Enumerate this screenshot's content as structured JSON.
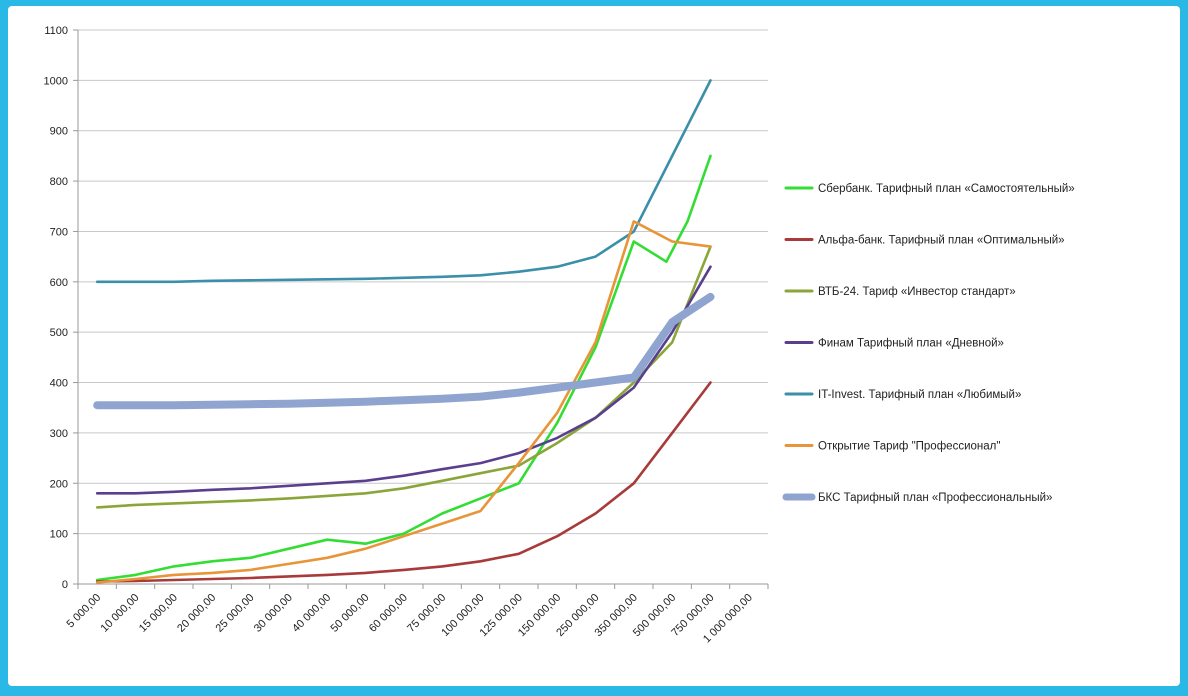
{
  "chart_data": {
    "type": "line",
    "categories": [
      "5 000,00",
      "10 000,00",
      "15 000,00",
      "20 000,00",
      "25 000,00",
      "30 000,00",
      "40 000,00",
      "50 000,00",
      "60 000,00",
      "75 000,00",
      "100 000,00",
      "125 000,00",
      "150 000,00",
      "250 000,00",
      "350 000,00",
      "500 000,00",
      "750 000,00",
      "1 000 000,00"
    ],
    "y_ticks": [
      "0",
      "100",
      "200",
      "300",
      "400",
      "500",
      "600",
      "700",
      "800",
      "900",
      "1000",
      "1100"
    ],
    "ylim": [
      0,
      1100
    ],
    "grid": true,
    "legend_position": "right",
    "series": [
      {
        "name": "Сбербанк. Тарифный план «Самостоятельный»",
        "color": "#33dd33",
        "x": [
          1,
          2,
          3,
          4,
          5,
          6,
          7,
          8,
          9,
          10,
          11,
          12,
          13,
          14,
          15,
          15.85,
          16.4,
          17
        ],
        "values": [
          8,
          18,
          35,
          45,
          52,
          70,
          88,
          80,
          100,
          140,
          170,
          200,
          320,
          470,
          680,
          640,
          720,
          850
        ]
      },
      {
        "name": "Альфа-банк. Тарифный план «Оптимальный»",
        "color": "#a83a3a",
        "x": [
          1,
          2,
          3,
          4,
          5,
          6,
          7,
          8,
          9,
          10,
          11,
          12,
          13,
          14,
          15,
          16,
          17
        ],
        "values": [
          5,
          6,
          8,
          10,
          12,
          15,
          18,
          22,
          28,
          35,
          45,
          60,
          95,
          140,
          200,
          300,
          400
        ]
      },
      {
        "name": "ВТБ-24. Тариф «Инвестор стандарт»",
        "color": "#8aa63a",
        "x": [
          1,
          2,
          3,
          4,
          5,
          6,
          7,
          8,
          9,
          10,
          11,
          12,
          13,
          14,
          15,
          16,
          17
        ],
        "values": [
          152,
          157,
          160,
          163,
          166,
          170,
          175,
          180,
          190,
          205,
          220,
          235,
          280,
          330,
          400,
          480,
          670
        ]
      },
      {
        "name": "Финам Тарифный план «Дневной»",
        "color": "#5b3f8f",
        "x": [
          1,
          2,
          3,
          4,
          5,
          6,
          7,
          8,
          9,
          10,
          11,
          12,
          13,
          14,
          15,
          16,
          17
        ],
        "values": [
          180,
          180,
          183,
          187,
          190,
          195,
          200,
          205,
          215,
          228,
          240,
          260,
          290,
          330,
          390,
          500,
          630
        ]
      },
      {
        "name": "IT-Invest. Тарифный план «Любимый»",
        "color": "#3c8fa8",
        "x": [
          1,
          2,
          3,
          4,
          5,
          6,
          7,
          8,
          9,
          10,
          11,
          12,
          13,
          14,
          15,
          16,
          17
        ],
        "values": [
          600,
          600,
          600,
          602,
          603,
          604,
          605,
          606,
          608,
          610,
          613,
          620,
          630,
          650,
          700,
          850,
          1000
        ]
      },
      {
        "name": "Открытие Тариф  \"Профессионал\"",
        "color": "#e8953a",
        "x": [
          1,
          2,
          3,
          4,
          5,
          6,
          7,
          8,
          9,
          10,
          11,
          12,
          13,
          14,
          15,
          16,
          17
        ],
        "values": [
          3,
          10,
          18,
          22,
          28,
          40,
          52,
          70,
          95,
          120,
          145,
          240,
          340,
          480,
          720,
          680,
          670
        ]
      },
      {
        "name": "БКС Тарифный план «Профессиональный»",
        "color": "#8fa5cf",
        "x": [
          1,
          2,
          3,
          4,
          5,
          6,
          7,
          8,
          9,
          10,
          11,
          12,
          13,
          14,
          15,
          16,
          17
        ],
        "values": [
          355,
          355,
          355,
          356,
          357,
          358,
          360,
          362,
          365,
          368,
          372,
          380,
          390,
          400,
          410,
          520,
          570
        ]
      }
    ]
  }
}
